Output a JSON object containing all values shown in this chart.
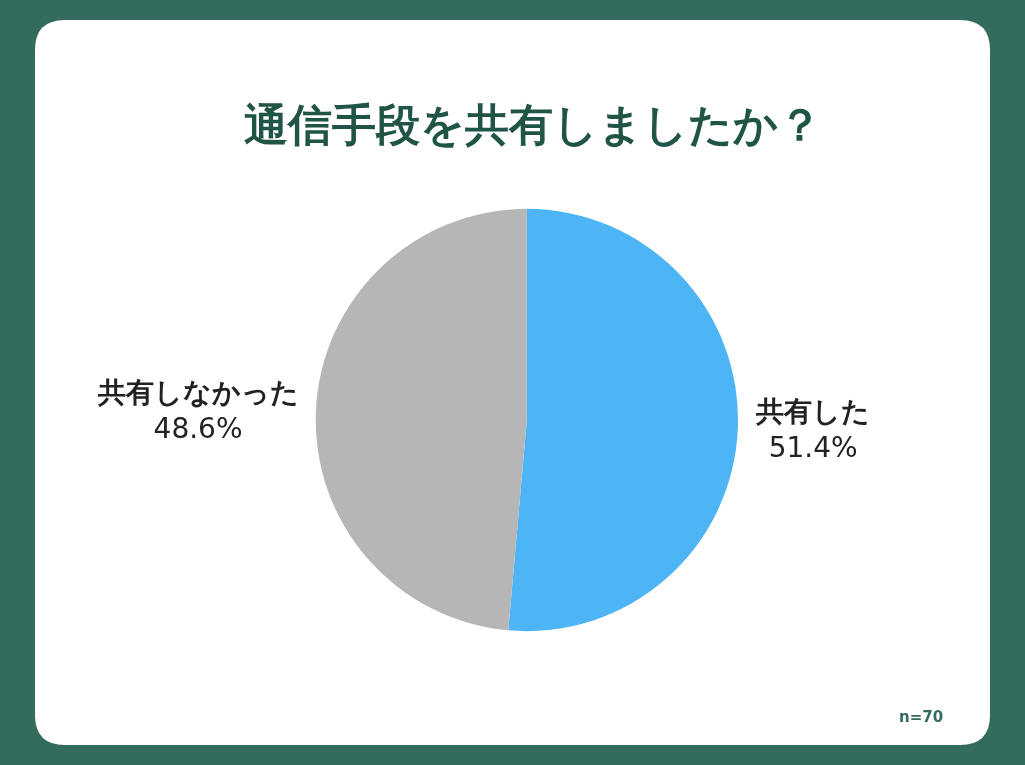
{
  "chart_data": {
    "type": "pie",
    "title": "通信手段を共有しましたか？",
    "categories": [
      "共有した",
      "共有しなかった"
    ],
    "values": [
      51.4,
      48.6
    ],
    "value_labels": [
      "51.4%",
      "48.6%"
    ],
    "colors": [
      "#4db5f5",
      "#b6b6b6"
    ],
    "annotations": [
      "n=70"
    ],
    "legend": false
  }
}
